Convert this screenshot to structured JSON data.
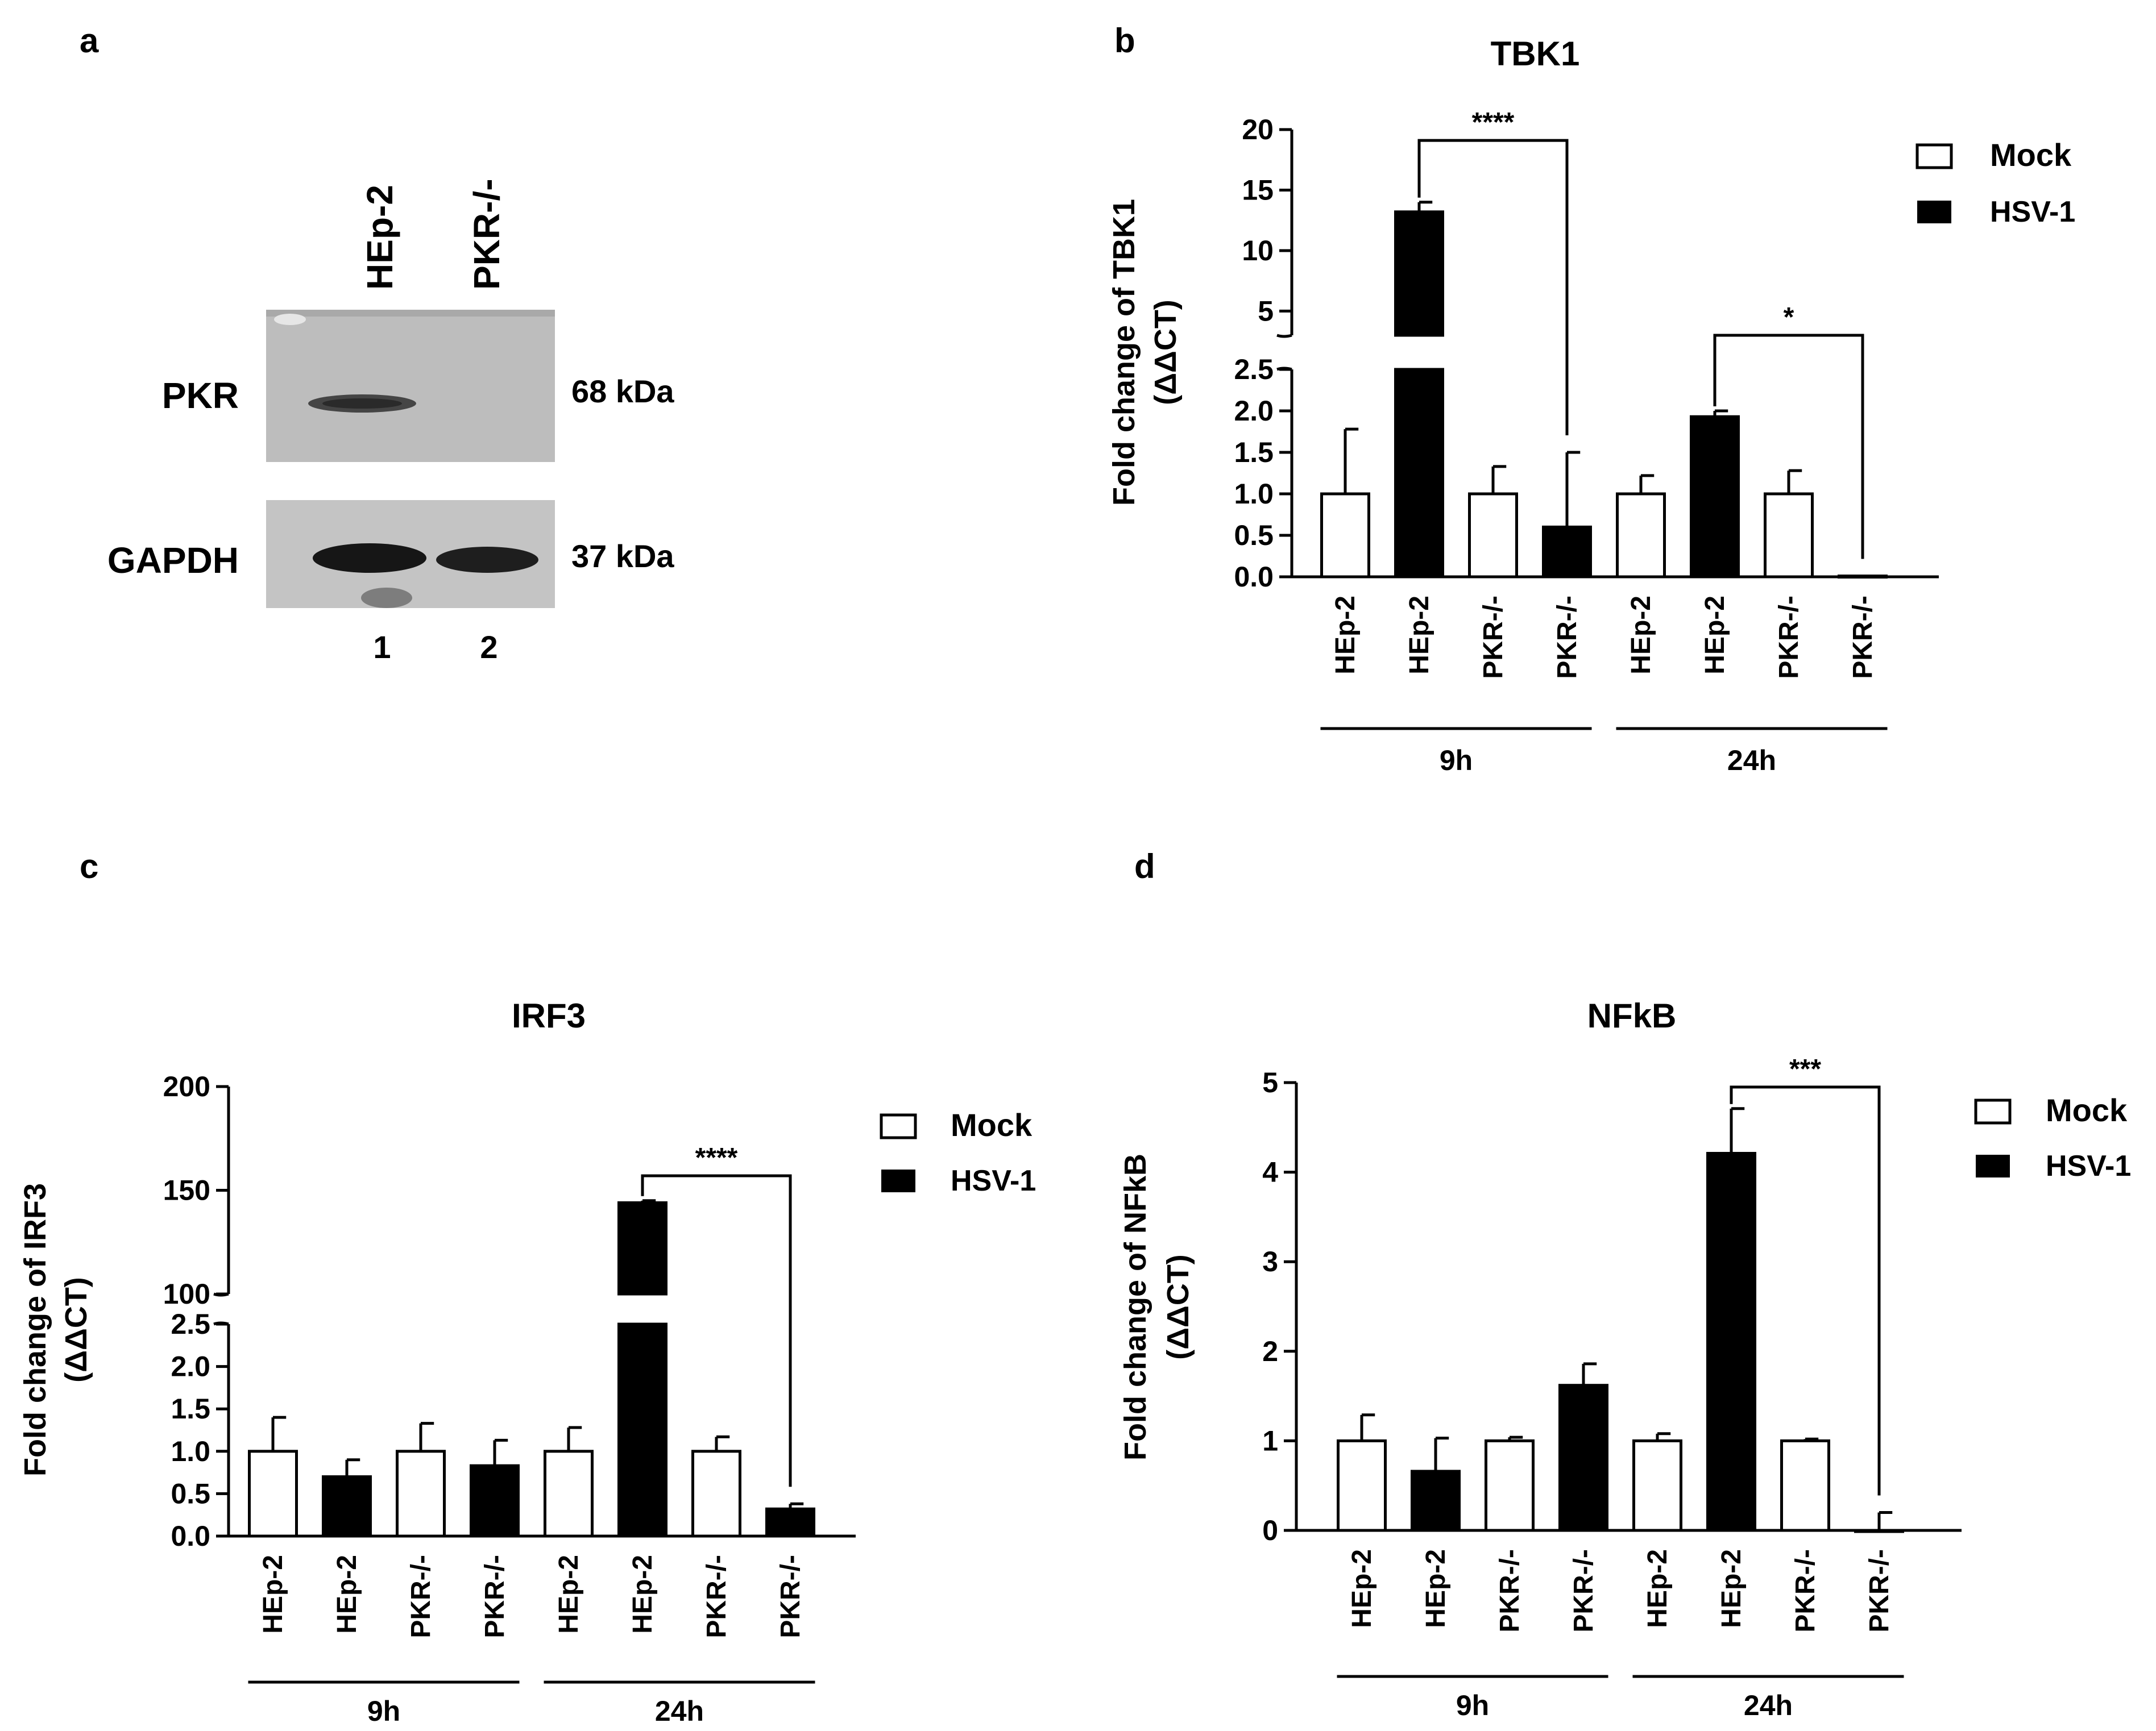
{
  "panels": {
    "a": {
      "letter": "a",
      "lanes": [
        "HEp-2",
        "PKR-/-"
      ],
      "rows": [
        {
          "label": "PKR",
          "kda": "68 kDa"
        },
        {
          "label": "GAPDH",
          "kda": "37 kDa"
        }
      ],
      "lane_numbers": [
        "1",
        "2"
      ]
    },
    "b": {
      "letter": "b"
    },
    "c": {
      "letter": "c"
    },
    "d": {
      "letter": "d"
    }
  },
  "legend": {
    "mock": "Mock",
    "hsv": "HSV-1"
  },
  "colors": {
    "mock": "#ffffff",
    "hsv": "#000000",
    "line": "#000000"
  },
  "chart_data": [
    {
      "id": "b",
      "type": "bar",
      "title": "TBK1",
      "ylabel_line1": "Fold change of TBK1",
      "ylabel_line2": "(ΔΔCT)",
      "categories": [
        "HEp-2",
        "HEp-2",
        "PKR-/-",
        "PKR-/-",
        "HEp-2",
        "HEp-2",
        "PKR-/-",
        "PKR-/-"
      ],
      "conditions": [
        "Mock",
        "HSV-1",
        "Mock",
        "HSV-1",
        "Mock",
        "HSV-1",
        "Mock",
        "HSV-1"
      ],
      "values": [
        1.0,
        13.2,
        1.0,
        0.6,
        1.0,
        1.93,
        1.0,
        0.01
      ],
      "errors": [
        0.78,
        0.8,
        0.33,
        0.9,
        0.22,
        0.07,
        0.28,
        0.0
      ],
      "groups": [
        {
          "label": "9h",
          "from": 0,
          "to": 3
        },
        {
          "label": "24h",
          "from": 4,
          "to": 7
        }
      ],
      "y_axis_broken": true,
      "lower_ticks": [
        "0.0",
        "0.5",
        "1.0",
        "1.5",
        "2.0",
        "2.5"
      ],
      "lower_tick_values": [
        0,
        0.5,
        1,
        1.5,
        2,
        2.5
      ],
      "upper_ticks": [
        "5",
        "10",
        "15",
        "20"
      ],
      "upper_tick_values": [
        5,
        10,
        15,
        20
      ],
      "ylim_lower": [
        0,
        2.5
      ],
      "ylim_upper": [
        3,
        20
      ],
      "significance": [
        {
          "from": 1,
          "to": 3,
          "label": "****",
          "y": 19.1
        },
        {
          "from": 5,
          "to": 7,
          "label": "*",
          "y": 2.7
        }
      ]
    },
    {
      "id": "c",
      "type": "bar",
      "title": "IRF3",
      "ylabel_line1": "Fold change of IRF3",
      "ylabel_line2": "(ΔΔCT)",
      "categories": [
        "HEp-2",
        "HEp-2",
        "PKR-/-",
        "PKR-/-",
        "HEp-2",
        "HEp-2",
        "PKR-/-",
        "PKR-/-"
      ],
      "conditions": [
        "Mock",
        "HSV-1",
        "Mock",
        "HSV-1",
        "Mock",
        "HSV-1",
        "Mock",
        "HSV-1"
      ],
      "values": [
        1.0,
        0.7,
        1.0,
        0.83,
        1.0,
        144,
        1.0,
        0.32
      ],
      "errors": [
        0.4,
        0.2,
        0.33,
        0.3,
        0.28,
        1.0,
        0.17,
        0.06
      ],
      "groups": [
        {
          "label": "9h",
          "from": 0,
          "to": 3
        },
        {
          "label": "24h",
          "from": 4,
          "to": 7
        }
      ],
      "y_axis_broken": true,
      "lower_ticks": [
        "0.0",
        "0.5",
        "1.0",
        "1.5",
        "2.0",
        "2.5"
      ],
      "lower_tick_values": [
        0,
        0.5,
        1,
        1.5,
        2,
        2.5
      ],
      "upper_ticks": [
        "100",
        "150",
        "200"
      ],
      "upper_tick_values": [
        100,
        150,
        200
      ],
      "ylim_lower": [
        0,
        2.5
      ],
      "ylim_upper": [
        100,
        200
      ],
      "significance": [
        {
          "from": 5,
          "to": 7,
          "label": "****",
          "y": 157
        }
      ]
    },
    {
      "id": "d",
      "type": "bar",
      "title": "NFkB",
      "ylabel_line1": "Fold change of NFkB",
      "ylabel_line2": "(ΔΔCT)",
      "categories": [
        "HEp-2",
        "HEp-2",
        "PKR-/-",
        "PKR-/-",
        "HEp-2",
        "HEp-2",
        "PKR-/-",
        "PKR-/-"
      ],
      "conditions": [
        "Mock",
        "HSV-1",
        "Mock",
        "HSV-1",
        "Mock",
        "HSV-1",
        "Mock",
        "HSV-1"
      ],
      "values": [
        1.0,
        0.66,
        1.0,
        1.62,
        1.0,
        4.21,
        1.0,
        0.0
      ],
      "errors": [
        0.29,
        0.37,
        0.04,
        0.24,
        0.08,
        0.5,
        0.02,
        0.2
      ],
      "groups": [
        {
          "label": "9h",
          "from": 0,
          "to": 3
        },
        {
          "label": "24h",
          "from": 4,
          "to": 7
        }
      ],
      "y_axis_broken": false,
      "ticks": [
        "0",
        "1",
        "2",
        "3",
        "4",
        "5"
      ],
      "tick_values": [
        0,
        1,
        2,
        3,
        4,
        5
      ],
      "ylim": [
        0,
        5
      ],
      "significance": [
        {
          "from": 5,
          "to": 7,
          "label": "***",
          "y": 4.95
        }
      ]
    }
  ]
}
